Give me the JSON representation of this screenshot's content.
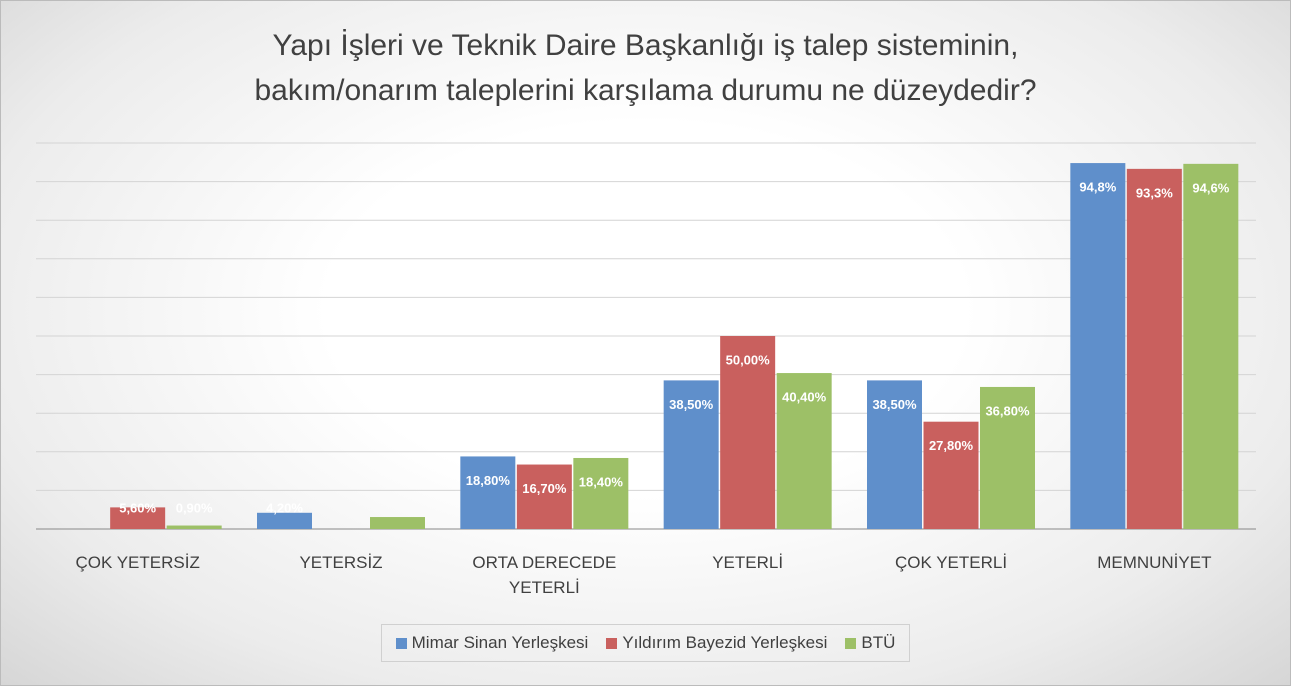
{
  "chart_data": {
    "type": "bar",
    "title": "Yapı İşleri ve Teknik Daire Başkanlığı iş talep sisteminin,\nbakım/onarım taleplerini karşılama durumu ne düzeydedir?",
    "categories": [
      "ÇOK YETERSİZ",
      "YETERSİZ",
      "ORTA DERECEDE YETERLİ",
      "YETERLİ",
      "ÇOK YETERLİ",
      "MEMNUNİYET"
    ],
    "series": [
      {
        "name": "Mimar Sinan Yerleşkesi",
        "color": "#5f8fcb",
        "values": [
          null,
          4.2,
          18.8,
          38.5,
          38.5,
          94.8
        ],
        "value_labels": [
          null,
          "4,20%",
          "18,80%",
          "38,50%",
          "38,50%",
          "94,8%"
        ]
      },
      {
        "name": "Yıldırım Bayezid Yerleşkesi",
        "color": "#c9605e",
        "values": [
          5.6,
          null,
          16.7,
          50.0,
          27.8,
          93.3
        ],
        "value_labels": [
          "5,60%",
          null,
          "16,70%",
          "50,00%",
          "27,80%",
          "93,3%"
        ]
      },
      {
        "name": "BTÜ",
        "color": "#9dc067",
        "values": [
          0.9,
          3.1,
          18.4,
          40.4,
          36.8,
          94.6
        ],
        "value_labels": [
          "0,90%",
          null,
          "18,40%",
          "40,40%",
          "36,80%",
          "94,6%"
        ]
      }
    ],
    "ylim": [
      0,
      100
    ],
    "yticks": [
      0,
      10,
      20,
      30,
      40,
      50,
      60,
      70,
      80,
      90,
      100
    ],
    "grid": true,
    "legend": "bottom"
  }
}
